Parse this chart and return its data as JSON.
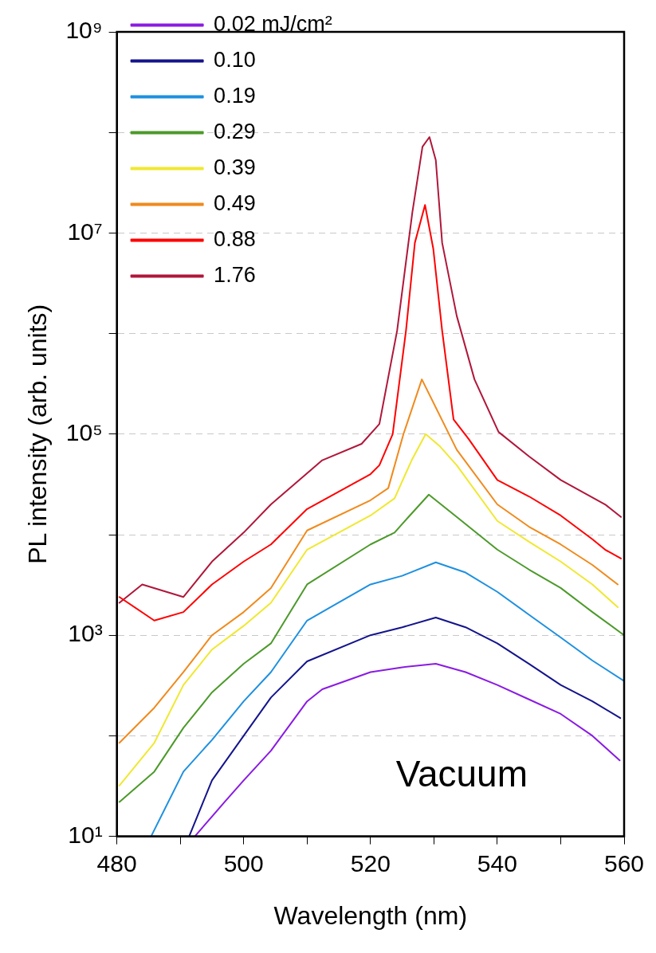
{
  "chart_data": {
    "type": "line",
    "xlabel": "Wavelength (nm)",
    "ylabel": "PL intensity (arb. units)",
    "xlim": [
      480,
      560
    ],
    "xticks": [
      480,
      {
        "value": 490,
        "label": null
      },
      500,
      {
        "value": 510,
        "label": null
      },
      520,
      {
        "value": 530,
        "label": null
      },
      540,
      {
        "value": 550,
        "label": null
      },
      560
    ],
    "ylim": [
      10,
      1000000000
    ],
    "yticks": [
      {
        "value": 10,
        "label": "10¹"
      },
      {
        "value": 100,
        "label": null
      },
      {
        "value": 1000,
        "label": "10³"
      },
      {
        "value": 10000,
        "label": null
      },
      {
        "value": 100000,
        "label": "10⁵"
      },
      {
        "value": 1000000,
        "label": null
      },
      {
        "value": 10000000,
        "label": "10⁷"
      },
      {
        "value": 100000000,
        "label": null
      },
      {
        "value": 1000000000,
        "label": "10⁹"
      }
    ],
    "log": "y",
    "grid": "y",
    "legend": "top left",
    "marker": "none",
    "line_style": "solid",
    "annotations": [
      "Vacuum"
    ],
    "series": [
      {
        "name": "0.02 mJ/cm²",
        "color": "#8a1be2",
        "x": [
          492.3,
          497,
          500,
          504.3,
          510,
          512.4,
          520,
          525,
          530.3,
          535,
          540,
          545,
          550,
          555,
          559.3
        ],
        "values": [
          10,
          22,
          36,
          71,
          220,
          290,
          430,
          480,
          520,
          430,
          320,
          230,
          165,
          100,
          57
        ]
      },
      {
        "name": "0.10",
        "color": "#14148c",
        "x": [
          491.4,
          495,
          500,
          504.3,
          510,
          520,
          525,
          530.3,
          535,
          540,
          545,
          550,
          555,
          559.4
        ],
        "values": [
          10,
          36,
          100,
          240,
          550,
          1000,
          1200,
          1500,
          1200,
          830,
          520,
          320,
          220,
          150
        ]
      },
      {
        "name": "0.19",
        "color": "#1e90e0",
        "x": [
          485.4,
          490.5,
          495,
          500,
          504.3,
          510,
          520,
          525,
          530.3,
          535,
          540,
          545,
          550,
          555,
          560
        ],
        "values": [
          10,
          44,
          91,
          220,
          430,
          1400,
          3200,
          3900,
          5300,
          4200,
          2700,
          1600,
          950,
          560,
          350
        ]
      },
      {
        "name": "0.29",
        "color": "#4c9a2a",
        "x": [
          480.4,
          485.9,
          490.5,
          495,
          500,
          504.3,
          510,
          520,
          523.8,
          526,
          529.2,
          533.6,
          540,
          545,
          550,
          555,
          560
        ],
        "values": [
          22,
          44,
          120,
          270,
          520,
          830,
          3200,
          8000,
          10500,
          15000,
          25000,
          15000,
          7100,
          4500,
          2950,
          1700,
          1000
        ]
      },
      {
        "name": "0.39",
        "color": "#f0e830",
        "x": [
          480.4,
          485.9,
          490.5,
          495,
          500,
          504.3,
          510,
          520,
          523.8,
          526.5,
          528.7,
          531,
          533.6,
          540,
          545,
          550,
          555,
          559
        ],
        "values": [
          32,
          85,
          320,
          720,
          1240,
          2100,
          7100,
          15500,
          23000,
          55000,
          100000,
          75000,
          49000,
          13700,
          8500,
          5400,
          3200,
          1900
        ]
      },
      {
        "name": "0.49",
        "color": "#f08a1c",
        "x": [
          480.4,
          485.9,
          490.5,
          495,
          500,
          504.3,
          510,
          520,
          522.8,
          525.2,
          528.1,
          531,
          533.6,
          540,
          545,
          550,
          555,
          559
        ],
        "values": [
          85,
          190,
          430,
          1000,
          1700,
          2950,
          11000,
          22000,
          29000,
          100000,
          350000,
          150000,
          70000,
          20000,
          12000,
          8000,
          5000,
          3200
        ]
      },
      {
        "name": "0.88",
        "color": "#ff0000",
        "x": [
          480.4,
          485.9,
          490.5,
          495,
          500,
          504.3,
          510,
          520,
          521.4,
          523.5,
          525.6,
          527,
          528.6,
          529.9,
          531.3,
          533.1,
          535.5,
          540,
          545,
          550,
          555,
          557,
          559.5
        ],
        "values": [
          2400,
          1400,
          1700,
          3200,
          5400,
          8000,
          18000,
          40000,
          49000,
          100000,
          1070000,
          8000000,
          19000000,
          7000000,
          1070000,
          140000,
          89000,
          35000,
          24000,
          15500,
          9000,
          7100,
          5800
        ]
      },
      {
        "name": "1.76",
        "color": "#b0173a",
        "x": [
          480.4,
          484,
          490.5,
          495,
          500,
          504.3,
          512.4,
          518.6,
          521.4,
          524.2,
          526.6,
          528.2,
          529.3,
          530.3,
          531.3,
          533.6,
          536.4,
          540.2,
          545,
          550,
          557,
          559.5
        ],
        "values": [
          2100,
          3200,
          2400,
          5400,
          10500,
          20000,
          55000,
          80000,
          126000,
          1070000,
          16000000,
          72000000,
          90000000,
          53000000,
          8000000,
          1500000,
          350000,
          105000,
          60000,
          35000,
          20000,
          15000
        ]
      }
    ]
  }
}
